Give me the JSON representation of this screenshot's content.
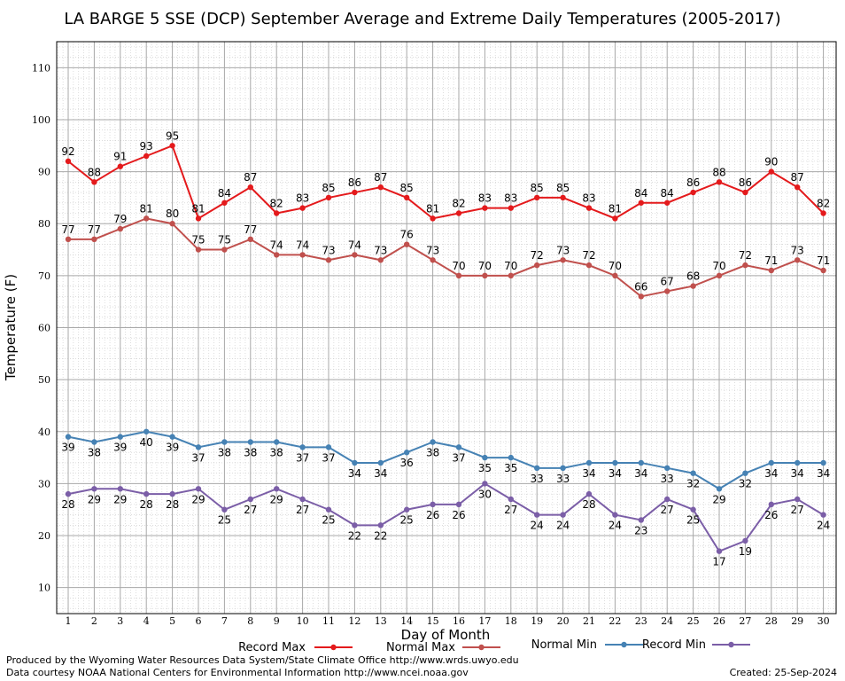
{
  "chart_data": {
    "type": "line",
    "title": "LA BARGE 5 SSE (DCP) September Average and Extreme Daily Temperatures (2005-2017)",
    "xlabel": "Day of Month",
    "ylabel": "Temperature (F)",
    "x": [
      1,
      2,
      3,
      4,
      5,
      6,
      7,
      8,
      9,
      10,
      11,
      12,
      13,
      14,
      15,
      16,
      17,
      18,
      19,
      20,
      21,
      22,
      23,
      24,
      25,
      26,
      27,
      28,
      29,
      30
    ],
    "ylim": [
      5,
      115
    ],
    "yticks": [
      10,
      20,
      30,
      40,
      50,
      60,
      70,
      80,
      90,
      100,
      110
    ],
    "grid": true,
    "legend": "bottom",
    "series": [
      {
        "name": "Record Max",
        "color": "#e41a1c",
        "label_pos": "above",
        "values": [
          92,
          88,
          91,
          93,
          95,
          81,
          84,
          87,
          82,
          83,
          85,
          86,
          87,
          85,
          81,
          82,
          83,
          83,
          85,
          85,
          83,
          81,
          84,
          84,
          86,
          88,
          86,
          90,
          87,
          82
        ]
      },
      {
        "name": "Normal Max",
        "color": "#c0504d",
        "label_pos": "above",
        "values": [
          77,
          77,
          79,
          81,
          80,
          75,
          75,
          77,
          74,
          74,
          73,
          74,
          73,
          76,
          73,
          70,
          70,
          70,
          72,
          73,
          72,
          70,
          66,
          67,
          68,
          70,
          72,
          71,
          73,
          71
        ]
      },
      {
        "name": "Normal Min",
        "color": "#4682b4",
        "label_pos": "below",
        "values": [
          39,
          38,
          39,
          40,
          39,
          37,
          38,
          38,
          38,
          37,
          37,
          34,
          34,
          36,
          38,
          37,
          35,
          35,
          33,
          33,
          34,
          34,
          34,
          33,
          32,
          29,
          32,
          34,
          34,
          34
        ]
      },
      {
        "name": "Record Min",
        "color": "#7b5ea7",
        "label_pos": "below",
        "values": [
          28,
          29,
          29,
          28,
          28,
          29,
          25,
          27,
          29,
          27,
          25,
          22,
          22,
          25,
          26,
          26,
          30,
          27,
          24,
          24,
          28,
          24,
          23,
          27,
          25,
          17,
          19,
          26,
          27,
          24
        ]
      }
    ]
  },
  "footer": {
    "produced": "Produced by the Wyoming Water Resources Data System/State Climate Office http://www.wrds.uwyo.edu",
    "courtesy": "Data courtesy NOAA National Centers for Environmental Information http://www.ncei.noaa.gov",
    "created": "Created:  25-Sep-2024"
  }
}
